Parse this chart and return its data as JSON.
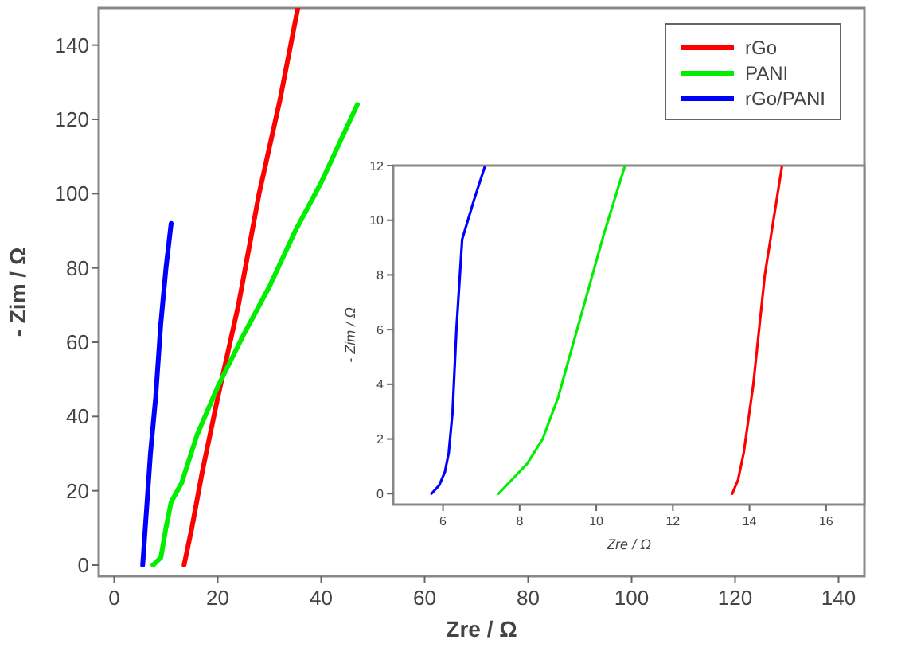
{
  "chart_data": [
    {
      "type": "line",
      "xlabel": "Zre / Ω",
      "ylabel": "- Zim / Ω",
      "xlim": [
        -3,
        145
      ],
      "ylim": [
        -3,
        150
      ],
      "xticks": [
        0,
        20,
        40,
        60,
        80,
        100,
        120,
        140
      ],
      "yticks": [
        0,
        20,
        40,
        60,
        80,
        100,
        120,
        140
      ],
      "legend": "top right",
      "series": [
        {
          "name": "rGo",
          "color": "#ff0000",
          "x": [
            13.5,
            15,
            17,
            20,
            24,
            28,
            32,
            35.5
          ],
          "values": [
            0,
            10,
            25,
            45,
            70,
            100,
            125,
            150
          ]
        },
        {
          "name": "PANI",
          "color": "#00ee00",
          "x": [
            7.5,
            9,
            10,
            11,
            13,
            16,
            20,
            25,
            30,
            35,
            40,
            47
          ],
          "values": [
            0,
            2,
            10,
            17,
            22,
            35,
            48,
            62,
            75,
            90,
            103,
            124
          ]
        },
        {
          "name": "rGo/PANI",
          "color": "#0000ff",
          "x": [
            5.5,
            6,
            7,
            8,
            9,
            10,
            11
          ],
          "values": [
            0,
            10,
            30,
            45,
            65,
            80,
            92
          ]
        }
      ]
    },
    {
      "type": "line",
      "xlabel": "Zre / Ω",
      "ylabel": "- Zim / Ω",
      "xlim": [
        4.7,
        17
      ],
      "ylim": [
        -0.4,
        12
      ],
      "xticks": [
        6,
        8,
        10,
        12,
        14,
        16
      ],
      "yticks": [
        0,
        2,
        4,
        6,
        8,
        10,
        12
      ],
      "series": [
        {
          "color": "#ff0000",
          "x": [
            13.55,
            13.7,
            13.85,
            14.1,
            14.4,
            14.85
          ],
          "values": [
            0,
            0.5,
            1.5,
            4,
            8,
            12
          ]
        },
        {
          "color": "#00ee00",
          "x": [
            7.45,
            8.2,
            8.6,
            9,
            9.4,
            9.8,
            10.2,
            10.75
          ],
          "values": [
            0,
            1.1,
            2,
            3.5,
            5.5,
            7.5,
            9.5,
            12
          ]
        },
        {
          "color": "#0000ff",
          "x": [
            5.7,
            5.9,
            6.05,
            6.15,
            6.25,
            6.35,
            6.5,
            6.8,
            7.1
          ],
          "values": [
            0,
            0.3,
            0.8,
            1.5,
            3,
            6,
            9.3,
            10.7,
            12
          ]
        }
      ]
    }
  ]
}
